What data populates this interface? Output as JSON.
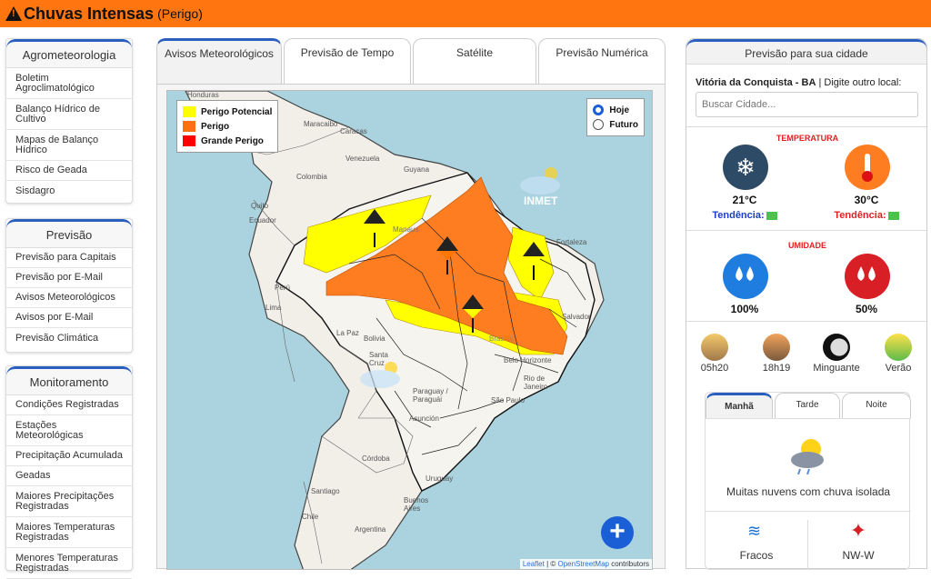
{
  "alert": {
    "title": "Chuvas Intensas",
    "level": "(Perigo)"
  },
  "sidebar": {
    "agro": {
      "title": "Agrometeorologia",
      "items": [
        "Boletim Agroclimatológico",
        "Balanço Hídrico de Cultivo",
        "Mapas de Balanço Hídrico",
        "Risco de Geada",
        "Sisdagro"
      ]
    },
    "previsao": {
      "title": "Previsão",
      "items": [
        "Previsão para Capitais",
        "Previsão por E-Mail",
        "Avisos Meteorológicos",
        "Avisos por E-Mail",
        "Previsão Climática"
      ]
    },
    "monitor": {
      "title": "Monitoramento",
      "items": [
        "Condições Registradas",
        "Estações Meteorológicas",
        "Precipitação Acumulada",
        "Geadas",
        "Maiores Precipitações Registradas",
        "Maiores Temperaturas Registradas",
        "Menores Temperaturas Registradas"
      ]
    }
  },
  "tabs": [
    "Avisos Meteorológicos",
    "Previsão de Tempo",
    "Satélite",
    "Previsão Numérica"
  ],
  "map": {
    "legend": [
      {
        "label": "Perigo Potencial",
        "color": "#ffff00"
      },
      {
        "label": "Perigo",
        "color": "#ff7010"
      },
      {
        "label": "Grande Perigo",
        "color": "#ff0000"
      }
    ],
    "radio": {
      "hoje": "Hoje",
      "futuro": "Futuro"
    },
    "places": {
      "honduras": "Honduras",
      "maracaibo": "Maracaibo",
      "caracas": "Caracas",
      "venezuela": "Venezuela",
      "colombia": "Colombia",
      "guyana": "Guyana",
      "quito": "Quito",
      "ecuador": "Ecuador",
      "manaus": "Manaus",
      "fortaleza": "Fortaleza",
      "peru": "Perú",
      "lima": "Lima",
      "lapaz": "La Paz",
      "bolivia": "Bolivia",
      "salvador": "Salvador",
      "brasilia": "Brasília",
      "belohorizonte": "Belo Horizonte",
      "santacruz": "Santa Cruz",
      "riodejaneiro": "Rio de Janeiro",
      "paraguay": "Paraguay / Paraguái",
      "saopaulo": "São Paulo",
      "asuncion": "Asunción",
      "cordoba": "Córdoba",
      "uruguay": "Uruguay",
      "santiago": "Santiago",
      "chile": "Chile",
      "buenosaires": "Buenos Aires",
      "argentina": "Argentina",
      "inmet": "INMET"
    },
    "attribution": {
      "leaflet": "Leaflet",
      "sep": " | © ",
      "osm": "OpenStreetMap",
      "rest": " contributors"
    }
  },
  "right": {
    "title": "Previsão para sua cidade",
    "city": "Vitória da Conquista - BA",
    "city_suffix": " | Digite outro local:",
    "search_placeholder": "Buscar Cidade...",
    "temp_title": "TEMPERATURA",
    "tmin": "21°C",
    "tmax": "30°C",
    "tendencia": "Tendência:",
    "hum_title": "UMIDADE",
    "hmax": "100%",
    "hmin": "50%",
    "sunrise": "05h20",
    "sunset": "18h19",
    "moon": "Minguante",
    "season": "Verão",
    "periods": [
      "Manhã",
      "Tarde",
      "Noite"
    ],
    "desc": "Muitas nuvens com chuva isolada",
    "wind_int": "Fracos",
    "wind_dir": "NW-W"
  }
}
